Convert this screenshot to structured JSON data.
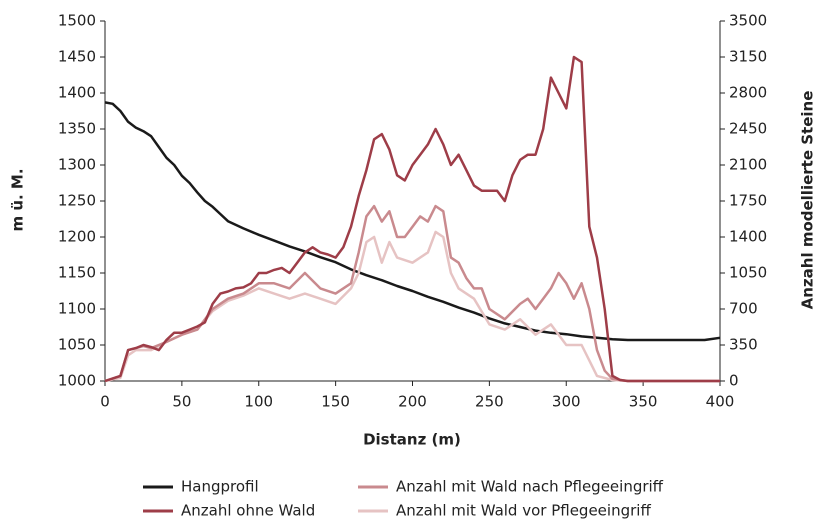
{
  "chart_data": {
    "type": "line",
    "xlabel": "Distanz (m)",
    "ylabel": "m ü. M.",
    "y2label": "Anzahl modellierte Steine",
    "xlim": [
      0,
      400
    ],
    "xticks": [
      0,
      50,
      100,
      150,
      200,
      250,
      300,
      350,
      400
    ],
    "ylim": [
      1000,
      1500
    ],
    "yticks": [
      1000,
      1050,
      1100,
      1150,
      1200,
      1250,
      1300,
      1350,
      1400,
      1450,
      1500
    ],
    "y2lim": [
      0,
      3500
    ],
    "y2ticks": [
      0,
      350,
      700,
      1050,
      1400,
      1750,
      2100,
      2450,
      2800,
      3150,
      3500
    ],
    "grid": false,
    "series": [
      {
        "name": "Hangprofil",
        "color": "#1a1a1a",
        "axis": "y",
        "x": [
          0,
          5,
          10,
          15,
          20,
          25,
          30,
          35,
          40,
          45,
          50,
          55,
          60,
          65,
          70,
          75,
          80,
          90,
          100,
          110,
          120,
          130,
          140,
          150,
          160,
          170,
          180,
          190,
          200,
          210,
          220,
          230,
          240,
          250,
          260,
          270,
          280,
          290,
          300,
          310,
          320,
          330,
          340,
          350,
          360,
          370,
          380,
          390,
          400
        ],
        "values": [
          1387,
          1385,
          1375,
          1360,
          1352,
          1347,
          1340,
          1325,
          1310,
          1300,
          1285,
          1275,
          1262,
          1250,
          1242,
          1232,
          1222,
          1212,
          1203,
          1195,
          1187,
          1180,
          1172,
          1165,
          1155,
          1147,
          1140,
          1132,
          1125,
          1117,
          1110,
          1102,
          1095,
          1087,
          1080,
          1075,
          1070,
          1067,
          1065,
          1062,
          1060,
          1058,
          1057,
          1057,
          1057,
          1057,
          1057,
          1057,
          1060
        ]
      },
      {
        "name": "Anzahl ohne Wald",
        "color": "#9e3d48",
        "axis": "y2",
        "x": [
          0,
          10,
          15,
          20,
          25,
          30,
          35,
          40,
          45,
          50,
          55,
          60,
          65,
          70,
          75,
          80,
          85,
          90,
          95,
          100,
          105,
          110,
          115,
          120,
          125,
          130,
          135,
          140,
          145,
          150,
          155,
          160,
          165,
          170,
          175,
          180,
          185,
          190,
          195,
          200,
          205,
          210,
          215,
          220,
          225,
          230,
          235,
          240,
          245,
          250,
          255,
          260,
          265,
          270,
          275,
          280,
          285,
          290,
          295,
          300,
          305,
          310,
          315,
          320,
          325,
          330,
          335,
          340,
          400
        ],
        "values": [
          0,
          50,
          300,
          320,
          350,
          330,
          300,
          400,
          470,
          470,
          500,
          530,
          570,
          750,
          850,
          870,
          900,
          910,
          950,
          1050,
          1050,
          1080,
          1100,
          1050,
          1150,
          1250,
          1300,
          1250,
          1230,
          1200,
          1300,
          1500,
          1800,
          2050,
          2350,
          2400,
          2250,
          2000,
          1950,
          2100,
          2200,
          2300,
          2450,
          2300,
          2100,
          2200,
          2050,
          1900,
          1850,
          1850,
          1850,
          1750,
          2000,
          2150,
          2200,
          2200,
          2450,
          2950,
          2800,
          2650,
          3150,
          3100,
          1500,
          1200,
          700,
          50,
          10,
          0,
          0
        ]
      },
      {
        "name": "Anzahl mit Wald nach Pflegeeingriff",
        "color": "#c98a8e",
        "axis": "y2",
        "x": [
          0,
          10,
          15,
          20,
          25,
          30,
          40,
          50,
          60,
          70,
          80,
          90,
          100,
          110,
          120,
          130,
          140,
          150,
          160,
          165,
          170,
          175,
          180,
          185,
          190,
          195,
          200,
          205,
          210,
          215,
          220,
          225,
          230,
          235,
          240,
          245,
          250,
          260,
          270,
          275,
          280,
          285,
          290,
          295,
          300,
          305,
          310,
          315,
          320,
          325,
          330,
          340,
          400
        ],
        "values": [
          0,
          50,
          300,
          320,
          340,
          320,
          380,
          450,
          500,
          700,
          800,
          850,
          950,
          950,
          900,
          1050,
          900,
          850,
          950,
          1250,
          1600,
          1700,
          1550,
          1650,
          1400,
          1400,
          1500,
          1600,
          1550,
          1700,
          1650,
          1200,
          1150,
          1000,
          900,
          900,
          700,
          600,
          750,
          800,
          700,
          800,
          900,
          1050,
          950,
          800,
          950,
          700,
          300,
          100,
          20,
          0,
          0
        ]
      },
      {
        "name": "Anzahl mit Wald vor Pflegeeingriff",
        "color": "#e6c3c3",
        "axis": "y2",
        "x": [
          0,
          10,
          15,
          20,
          30,
          40,
          50,
          60,
          70,
          80,
          90,
          100,
          110,
          120,
          130,
          140,
          150,
          160,
          165,
          170,
          175,
          180,
          185,
          190,
          200,
          210,
          215,
          220,
          225,
          230,
          240,
          250,
          260,
          270,
          280,
          290,
          300,
          310,
          315,
          320,
          330,
          340,
          400
        ],
        "values": [
          0,
          30,
          250,
          300,
          300,
          380,
          450,
          500,
          680,
          780,
          830,
          900,
          850,
          800,
          850,
          800,
          750,
          900,
          1050,
          1350,
          1400,
          1150,
          1350,
          1200,
          1150,
          1250,
          1450,
          1400,
          1050,
          900,
          800,
          550,
          500,
          600,
          450,
          550,
          350,
          350,
          200,
          50,
          10,
          0,
          0
        ]
      }
    ]
  }
}
